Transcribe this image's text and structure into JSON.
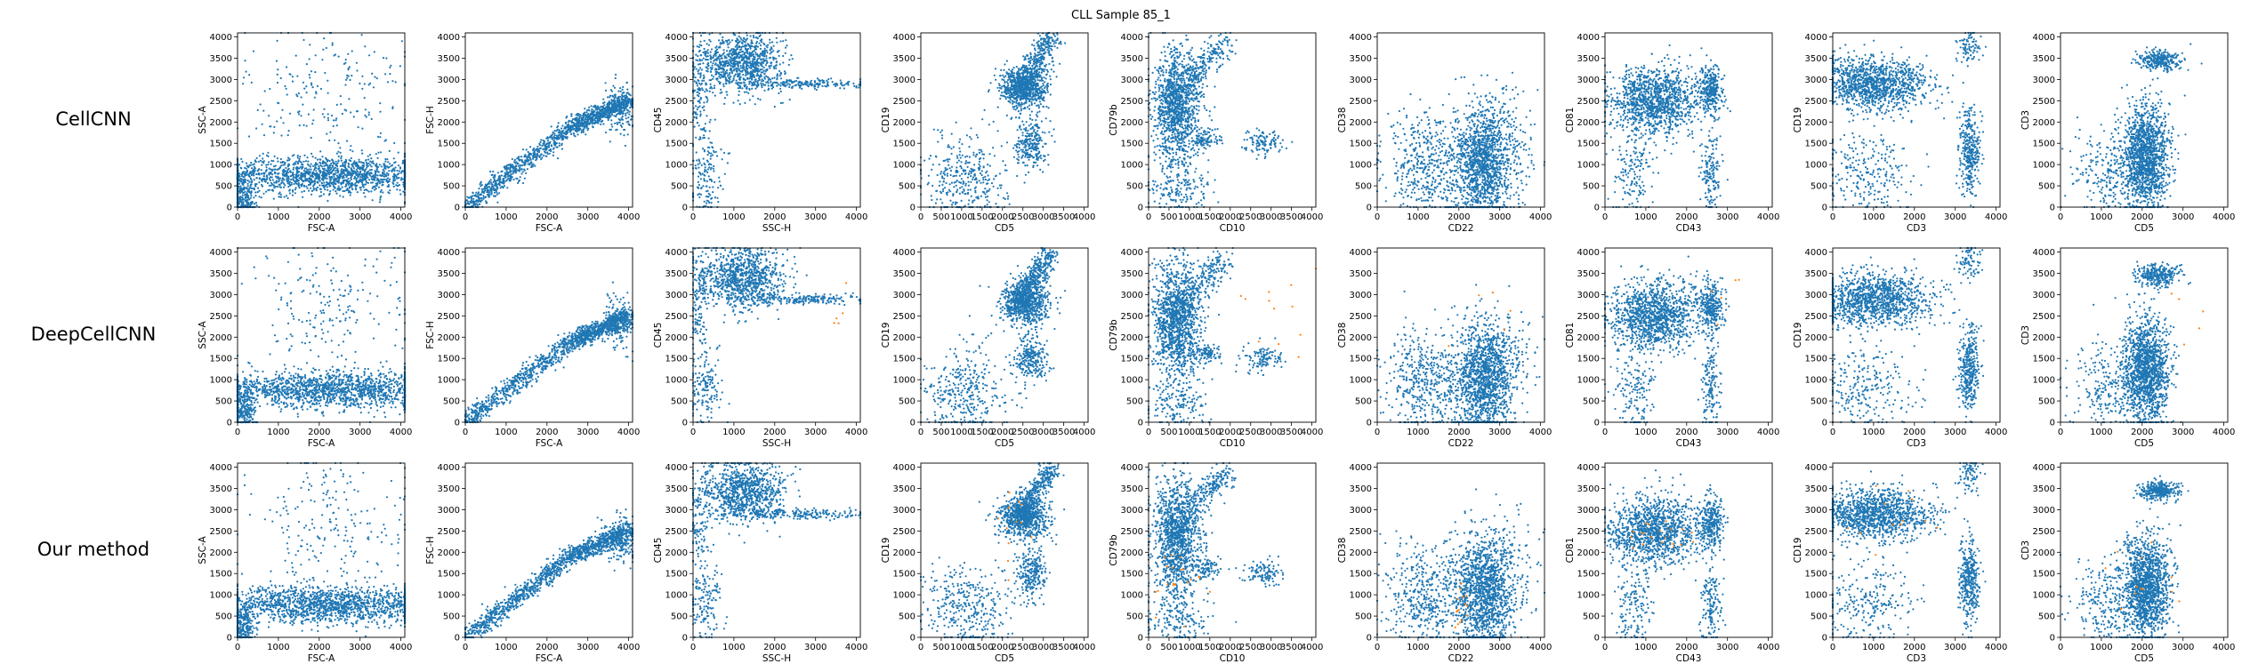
{
  "title": "CLL Sample 85_1",
  "chart_data": {
    "type": "scatter",
    "title": "CLL Sample 85_1",
    "rows": [
      "CellCNN",
      "DeepCellCNN",
      "Our method"
    ],
    "grid": false,
    "point_colors": {
      "cells": "#1f77b4",
      "highlighted": "#ff7f0e"
    },
    "panels": [
      {
        "xlabel": "FSC-A",
        "ylabel": "SSC-A",
        "xlim": [
          0,
          4096
        ],
        "ylim": [
          0,
          4096
        ],
        "xticks": [
          0,
          1000,
          2000,
          3000,
          4000
        ],
        "yticks": [
          0,
          500,
          1000,
          1500,
          2000,
          2500,
          3000,
          3500,
          4000
        ]
      },
      {
        "xlabel": "FSC-A",
        "ylabel": "FSC-H",
        "xlim": [
          0,
          4096
        ],
        "ylim": [
          0,
          4096
        ],
        "xticks": [
          0,
          1000,
          2000,
          3000,
          4000
        ],
        "yticks": [
          0,
          500,
          1000,
          1500,
          2000,
          2500,
          3000,
          3500,
          4000
        ]
      },
      {
        "xlabel": "SSC-H",
        "ylabel": "CD45",
        "xlim": [
          0,
          4096
        ],
        "ylim": [
          0,
          4096
        ],
        "xticks": [
          0,
          1000,
          2000,
          3000,
          4000
        ],
        "yticks": [
          0,
          500,
          1000,
          1500,
          2000,
          2500,
          3000,
          3500,
          4000
        ]
      },
      {
        "xlabel": "CD5",
        "ylabel": "CD19",
        "xlim": [
          0,
          4096
        ],
        "ylim": [
          0,
          4096
        ],
        "xticks": [
          0,
          500,
          1000,
          1500,
          2000,
          2500,
          3000,
          3500,
          4000
        ],
        "yticks": [
          0,
          500,
          1000,
          1500,
          2000,
          2500,
          3000,
          3500,
          4000
        ]
      },
      {
        "xlabel": "CD10",
        "ylabel": "CD79b",
        "xlim": [
          0,
          4096
        ],
        "ylim": [
          0,
          4096
        ],
        "xticks": [
          0,
          500,
          1000,
          1500,
          2000,
          2500,
          3000,
          3500,
          4000
        ],
        "yticks": [
          0,
          500,
          1000,
          1500,
          2000,
          2500,
          3000,
          3500,
          4000
        ]
      },
      {
        "xlabel": "CD22",
        "ylabel": "CD38",
        "xlim": [
          0,
          4096
        ],
        "ylim": [
          0,
          4096
        ],
        "xticks": [
          0,
          1000,
          2000,
          3000,
          4000
        ],
        "yticks": [
          0,
          500,
          1000,
          1500,
          2000,
          2500,
          3000,
          3500,
          4000
        ]
      },
      {
        "xlabel": "CD43",
        "ylabel": "CD81",
        "xlim": [
          0,
          4096
        ],
        "ylim": [
          0,
          4096
        ],
        "xticks": [
          0,
          1000,
          2000,
          3000,
          4000
        ],
        "yticks": [
          0,
          500,
          1000,
          1500,
          2000,
          2500,
          3000,
          3500,
          4000
        ]
      },
      {
        "xlabel": "CD3",
        "ylabel": "CD19",
        "xlim": [
          0,
          4096
        ],
        "ylim": [
          0,
          4096
        ],
        "xticks": [
          0,
          1000,
          2000,
          3000,
          4000
        ],
        "yticks": [
          0,
          500,
          1000,
          1500,
          2000,
          2500,
          3000,
          3500,
          4000
        ]
      },
      {
        "xlabel": "CD5",
        "ylabel": "CD3",
        "xlim": [
          0,
          4096
        ],
        "ylim": [
          0,
          4096
        ],
        "xticks": [
          0,
          1000,
          2000,
          3000,
          4000
        ],
        "yticks": [
          0,
          500,
          1000,
          1500,
          2000,
          2500,
          3000,
          3500,
          4000
        ]
      }
    ],
    "clusters": [
      [
        {
          "cx": 2200,
          "cy": 750,
          "sx": 1400,
          "sy": 220,
          "n": 1500
        },
        {
          "cx": 150,
          "cy": 250,
          "sx": 150,
          "sy": 300,
          "n": 250
        },
        {
          "cx": 2200,
          "cy": 2600,
          "sx": 1000,
          "sy": 900,
          "n": 220
        }
      ],
      [
        {
          "line": [
            [
              0,
              0
            ],
            [
              2600,
              1900
            ],
            [
              4000,
              2500
            ]
          ],
          "sd": 110,
          "n": 1300
        },
        {
          "cx": 3800,
          "cy": 2300,
          "sx": 200,
          "sy": 300,
          "n": 150
        }
      ],
      [
        {
          "cx": 1200,
          "cy": 3400,
          "sx": 500,
          "sy": 350,
          "n": 900
        },
        {
          "cx": 2600,
          "cy": 2900,
          "sx": 800,
          "sy": 60,
          "n": 200
        },
        {
          "cx": 300,
          "cy": 900,
          "sx": 200,
          "sy": 500,
          "n": 150
        },
        {
          "cx": 150,
          "cy": 2800,
          "sx": 120,
          "sy": 600,
          "n": 120
        }
      ],
      [
        {
          "cx": 2550,
          "cy": 2800,
          "sx": 300,
          "sy": 250,
          "n": 700
        },
        {
          "line": [
            [
              2300,
              2700
            ],
            [
              3200,
              4000
            ]
          ],
          "sd": 130,
          "n": 400
        },
        {
          "cx": 2700,
          "cy": 1500,
          "sx": 180,
          "sy": 300,
          "n": 250
        },
        {
          "cx": 1100,
          "cy": 700,
          "sx": 500,
          "sy": 500,
          "n": 350
        }
      ],
      [
        {
          "cx": 700,
          "cy": 2300,
          "sx": 300,
          "sy": 700,
          "n": 1100
        },
        {
          "line": [
            [
              500,
              2400
            ],
            [
              1900,
              3900
            ]
          ],
          "sd": 150,
          "n": 300
        },
        {
          "cx": 1400,
          "cy": 1600,
          "sx": 200,
          "sy": 120,
          "n": 100
        },
        {
          "cx": 2800,
          "cy": 1500,
          "sx": 250,
          "sy": 150,
          "n": 110
        },
        {
          "cx": 700,
          "cy": 400,
          "sx": 400,
          "sy": 300,
          "n": 150
        }
      ],
      [
        {
          "cx": 2600,
          "cy": 1000,
          "sx": 350,
          "sy": 700,
          "n": 1300
        },
        {
          "cx": 1200,
          "cy": 1000,
          "sx": 500,
          "sy": 600,
          "n": 450
        },
        {
          "cx": 3200,
          "cy": 1500,
          "sx": 400,
          "sy": 600,
          "n": 150
        }
      ],
      [
        {
          "cx": 1200,
          "cy": 2500,
          "sx": 550,
          "sy": 400,
          "n": 1200
        },
        {
          "cx": 2600,
          "cy": 2700,
          "sx": 150,
          "sy": 300,
          "n": 300
        },
        {
          "cx": 700,
          "cy": 800,
          "sx": 250,
          "sy": 500,
          "n": 150
        },
        {
          "cx": 2600,
          "cy": 800,
          "sx": 120,
          "sy": 500,
          "n": 150
        }
      ],
      [
        {
          "cx": 1000,
          "cy": 2900,
          "sx": 700,
          "sy": 300,
          "n": 1200
        },
        {
          "cx": 3350,
          "cy": 1300,
          "sx": 120,
          "sy": 500,
          "n": 350
        },
        {
          "cx": 800,
          "cy": 800,
          "sx": 600,
          "sy": 500,
          "n": 250
        },
        {
          "cx": 3350,
          "cy": 3800,
          "sx": 150,
          "sy": 200,
          "n": 80
        }
      ],
      [
        {
          "cx": 2100,
          "cy": 1200,
          "sx": 280,
          "sy": 600,
          "n": 1400
        },
        {
          "cx": 2400,
          "cy": 3450,
          "sx": 250,
          "sy": 120,
          "n": 300
        },
        {
          "cx": 1200,
          "cy": 800,
          "sx": 500,
          "sy": 500,
          "n": 250
        }
      ]
    ],
    "highlighted_clusters": [
      [],
      [
        {
          "panel": 2,
          "cx": 3800,
          "cy": 2600,
          "sx": 200,
          "sy": 400,
          "n": 5
        },
        {
          "panel": 4,
          "cx": 3200,
          "cy": 2600,
          "sx": 500,
          "sy": 600,
          "n": 12
        },
        {
          "panel": 5,
          "cx": 2600,
          "cy": 2500,
          "sx": 600,
          "sy": 500,
          "n": 5
        },
        {
          "panel": 6,
          "cx": 3000,
          "cy": 3000,
          "sx": 400,
          "sy": 500,
          "n": 5
        },
        {
          "panel": 8,
          "cx": 2900,
          "cy": 2500,
          "sx": 400,
          "sy": 400,
          "n": 5
        }
      ],
      [
        {
          "panel": 3,
          "cx": 2300,
          "cy": 2500,
          "sx": 400,
          "sy": 400,
          "n": 12
        },
        {
          "panel": 4,
          "cx": 800,
          "cy": 1400,
          "sx": 400,
          "sy": 500,
          "n": 20
        },
        {
          "panel": 5,
          "cx": 2000,
          "cy": 700,
          "sx": 120,
          "sy": 300,
          "n": 15
        },
        {
          "panel": 6,
          "cx": 1600,
          "cy": 2400,
          "sx": 600,
          "sy": 250,
          "n": 20
        },
        {
          "panel": 7,
          "cx": 1400,
          "cy": 2800,
          "sx": 700,
          "sy": 300,
          "n": 12
        },
        {
          "panel": 8,
          "cx": 2000,
          "cy": 1600,
          "sx": 400,
          "sy": 500,
          "n": 12
        }
      ]
    ]
  }
}
